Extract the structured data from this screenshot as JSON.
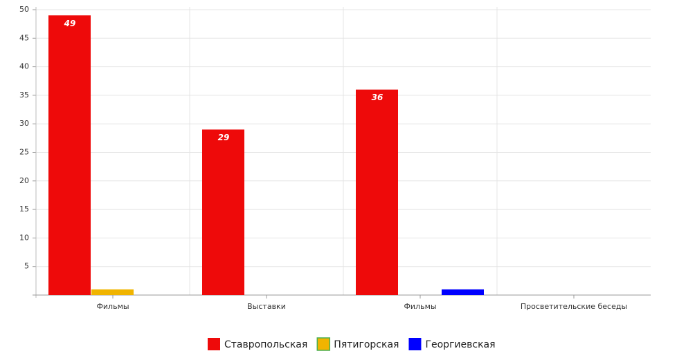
{
  "chart_data": {
    "type": "bar",
    "categories": [
      "Фильмы",
      "Выставки",
      "Фильмы",
      "Просветительские беседы"
    ],
    "series": [
      {
        "name": "Ставропольская",
        "color": "#ee0a0a",
        "values": [
          49,
          29,
          36,
          0
        ],
        "labels": true
      },
      {
        "name": "Пятигорская",
        "color": "#f0b400",
        "values": [
          1,
          0,
          0,
          0
        ],
        "labels": false
      },
      {
        "name": "Георгиевская",
        "color": "#0000ff",
        "values": [
          0,
          0,
          1,
          0
        ],
        "labels": false
      }
    ],
    "ylim": [
      0,
      50
    ],
    "yticks": [
      5,
      10,
      15,
      20,
      25,
      30,
      35,
      40,
      45,
      50
    ],
    "grid": true,
    "legend": "bottom"
  }
}
